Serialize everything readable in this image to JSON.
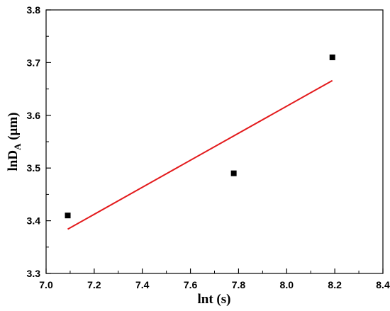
{
  "chart_data": {
    "type": "scatter",
    "title": "",
    "xlabel": "lnt (s)",
    "ylabel": {
      "main": "lnD",
      "subscript": "A",
      "unit": " (μm)"
    },
    "xlim": [
      7.0,
      8.4
    ],
    "ylim": [
      3.3,
      3.8
    ],
    "x_ticks": [
      "7.0",
      "7.2",
      "7.4",
      "7.6",
      "7.8",
      "8.0",
      "8.2",
      "8.4"
    ],
    "y_ticks": [
      "3.3",
      "3.4",
      "3.5",
      "3.6",
      "3.7",
      "3.8"
    ],
    "grid": false,
    "legend": "none",
    "series": [
      {
        "kind": "scatter",
        "marker": "square",
        "color": "#000000",
        "x": [
          7.09,
          7.78,
          8.19
        ],
        "y": [
          3.41,
          3.49,
          3.71
        ]
      },
      {
        "kind": "line",
        "fit": "linear",
        "color": "#e31a1c",
        "x": [
          7.09,
          8.19
        ],
        "y": [
          3.384,
          3.666
        ]
      }
    ]
  }
}
